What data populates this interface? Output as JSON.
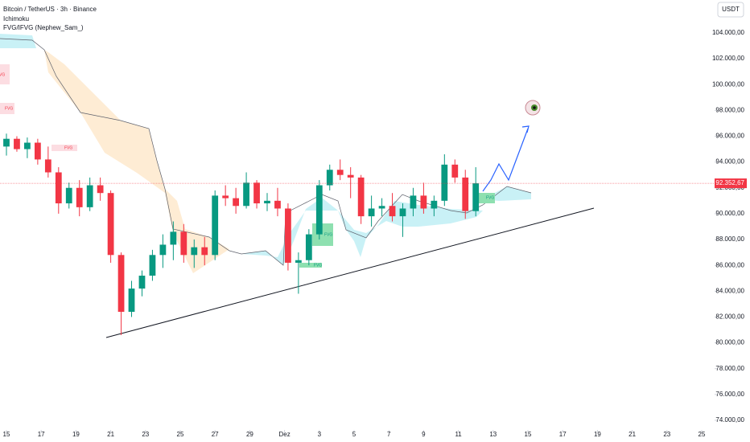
{
  "chart_data": {
    "type": "candlestick",
    "title": "Bitcoin / TetherUS · 3h · Binance",
    "indicators": [
      "Ichimoku",
      "FVG/IFVG (Nephew_Sam_)"
    ],
    "currency": "USDT",
    "up_color": "#089981",
    "down_color": "#f23645",
    "x": [
      0,
      0.6,
      1.2,
      1.8,
      2.4,
      3.0,
      3.6,
      4.2,
      4.8,
      5.4,
      6.0,
      6.6,
      7.2,
      7.8,
      8.4,
      9.0,
      9.6,
      10.2,
      10.8,
      11.4,
      12.0,
      12.6,
      13.2,
      13.8,
      14.4,
      15.0,
      15.6,
      16.2,
      16.8,
      17.4,
      18.0,
      18.6,
      19.2,
      19.8,
      20.4,
      21.0,
      21.6,
      22.2,
      22.8,
      23.4,
      24.0,
      24.6,
      25.2,
      25.8,
      26.4,
      27.0
    ],
    "open": [
      95200,
      95800,
      95000,
      95500,
      94200,
      93200,
      90800,
      92000,
      90500,
      92200,
      91600,
      86800,
      82400,
      84200,
      85200,
      86800,
      87600,
      88600,
      86800,
      87400,
      86800,
      91400,
      91200,
      90600,
      92400,
      90800,
      91000,
      90400,
      86200,
      86400,
      88400,
      92200,
      93400,
      93000,
      92800,
      89800,
      90400,
      90600,
      89800,
      90400,
      91400,
      90400,
      91000,
      93800,
      92800,
      90200
    ],
    "high": [
      96200,
      96000,
      95900,
      95800,
      95200,
      93600,
      92400,
      92600,
      92800,
      92800,
      91800,
      87000,
      84800,
      85600,
      87200,
      88400,
      89400,
      89200,
      88000,
      88200,
      91800,
      92200,
      92000,
      93200,
      92600,
      91600,
      92000,
      90800,
      87000,
      88800,
      92600,
      93800,
      94200,
      93600,
      93000,
      91400,
      91200,
      91600,
      90800,
      92000,
      92400,
      91400,
      94600,
      94200,
      93400,
      93600
    ],
    "low": [
      94500,
      94800,
      94300,
      93800,
      92800,
      90000,
      90400,
      89800,
      90200,
      91000,
      86200,
      80600,
      82000,
      83600,
      84800,
      85800,
      86400,
      86200,
      85800,
      86000,
      86400,
      90600,
      90000,
      90400,
      90400,
      90200,
      89800,
      85600,
      83800,
      86000,
      88000,
      91800,
      92600,
      91200,
      89200,
      89000,
      89800,
      89400,
      88200,
      89800,
      90000,
      89800,
      90600,
      92400,
      89600,
      89800
    ],
    "close": [
      95800,
      95000,
      95500,
      94200,
      93200,
      90800,
      92000,
      90500,
      92200,
      91600,
      86800,
      82400,
      84200,
      85200,
      86800,
      87600,
      88600,
      86800,
      87400,
      86800,
      91400,
      91200,
      90600,
      92400,
      90800,
      91000,
      90400,
      86200,
      86400,
      88400,
      92200,
      93400,
      93000,
      92800,
      89800,
      90400,
      90600,
      89800,
      90400,
      91400,
      90400,
      91000,
      93800,
      92800,
      90200,
      92352.67
    ],
    "last_price": {
      "value": 92352.67,
      "label": "92.352,67"
    },
    "fvg_label": "FVG",
    "xlim": [
      -0.37,
      40.74
    ],
    "xticks": [
      {
        "value": 0,
        "label": "15"
      },
      {
        "value": 2,
        "label": "17"
      },
      {
        "value": 4,
        "label": "19"
      },
      {
        "value": 6,
        "label": "21"
      },
      {
        "value": 8,
        "label": "23"
      },
      {
        "value": 10,
        "label": "25"
      },
      {
        "value": 12,
        "label": "27"
      },
      {
        "value": 14,
        "label": "29"
      },
      {
        "value": 16,
        "label": "Dez"
      },
      {
        "value": 18,
        "label": "3"
      },
      {
        "value": 20,
        "label": "5"
      },
      {
        "value": 22,
        "label": "7"
      },
      {
        "value": 24,
        "label": "9"
      },
      {
        "value": 26,
        "label": "11"
      },
      {
        "value": 28,
        "label": "13"
      },
      {
        "value": 30,
        "label": "15"
      },
      {
        "value": 32,
        "label": "17"
      },
      {
        "value": 34,
        "label": "19"
      },
      {
        "value": 36,
        "label": "21"
      },
      {
        "value": 38,
        "label": "23"
      },
      {
        "value": 40,
        "label": "25"
      }
    ],
    "ylim": [
      73250,
      106550
    ],
    "yticks": [
      {
        "value": 74000,
        "label": "74.000,00"
      },
      {
        "value": 76000,
        "label": "76.000,00"
      },
      {
        "value": 78000,
        "label": "78.000,00"
      },
      {
        "value": 80000,
        "label": "80.000,00"
      },
      {
        "value": 82000,
        "label": "82.000,00"
      },
      {
        "value": 84000,
        "label": "84.000,00"
      },
      {
        "value": 86000,
        "label": "86.000,00"
      },
      {
        "value": 88000,
        "label": "88.000,00"
      },
      {
        "value": 90000,
        "label": "90.000,00"
      },
      {
        "value": 92000,
        "label": "92.000,00"
      },
      {
        "value": 94000,
        "label": "94.000,00"
      },
      {
        "value": 96000,
        "label": "96.000,00"
      },
      {
        "value": 98000,
        "label": "98.000,00"
      },
      {
        "value": 100000,
        "label": "100.000,00"
      },
      {
        "value": 102000,
        "label": "102.000,00"
      },
      {
        "value": 104000,
        "label": "104.000,00"
      }
    ]
  }
}
